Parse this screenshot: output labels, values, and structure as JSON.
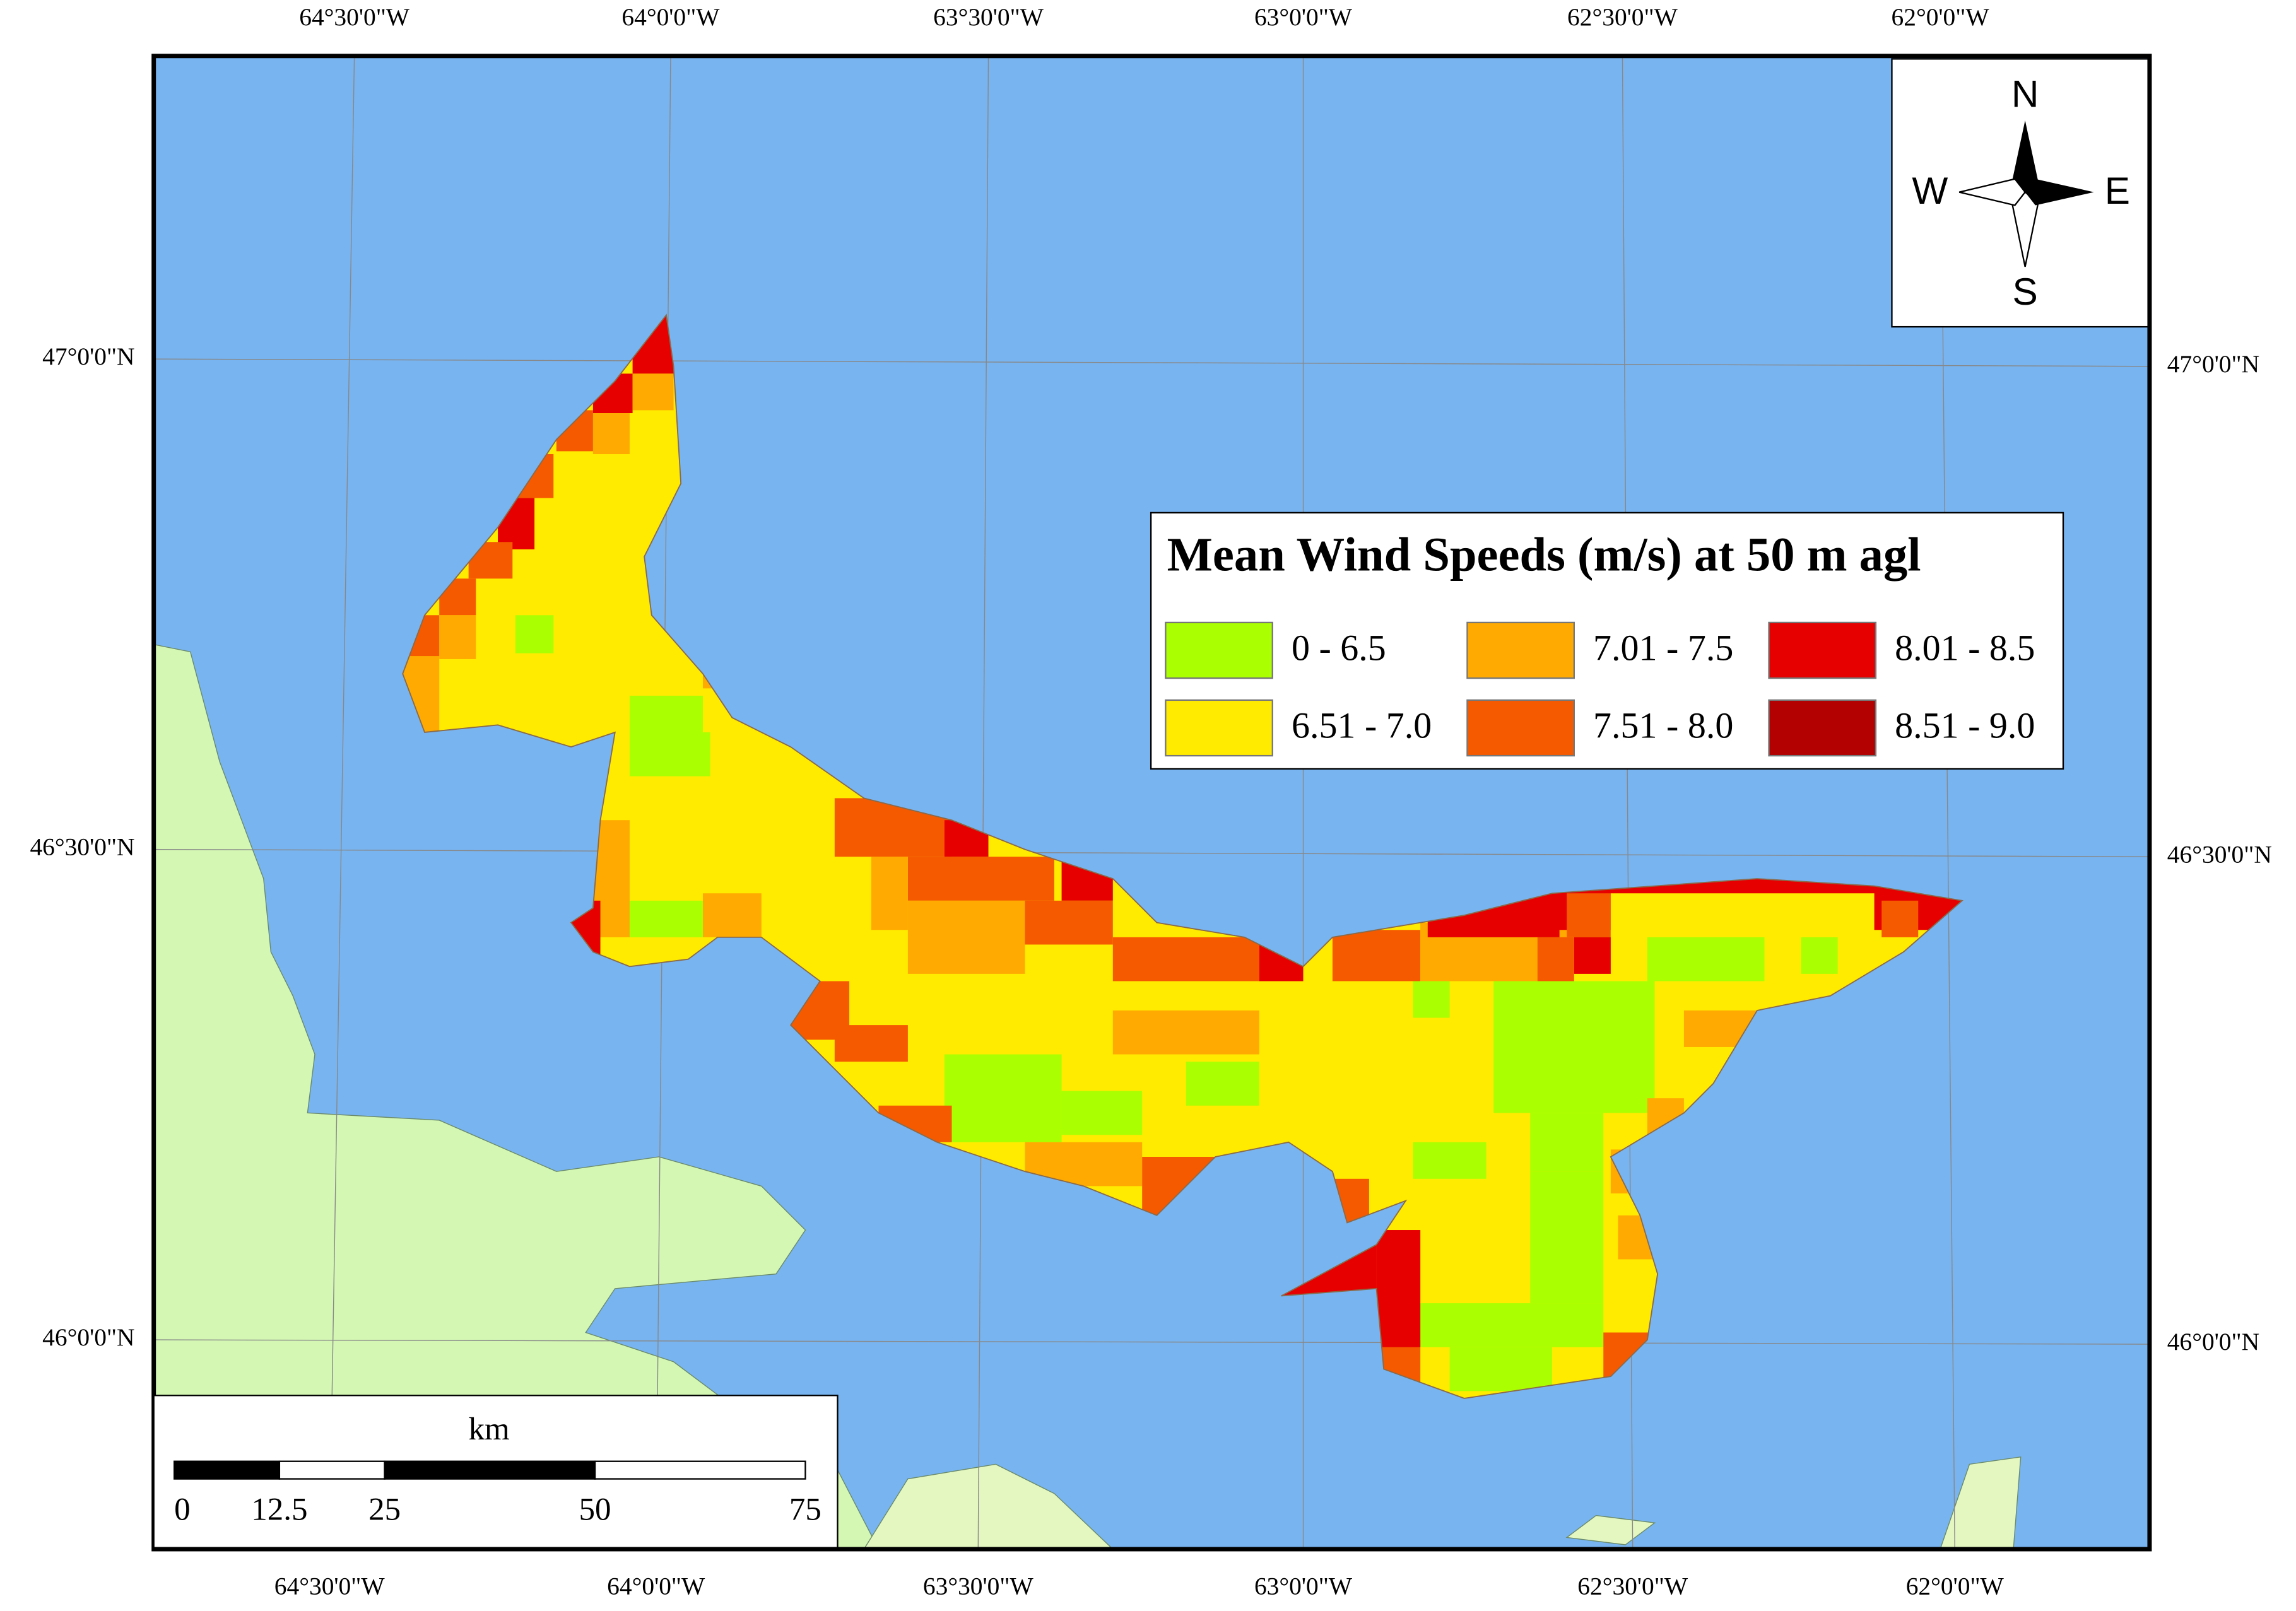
{
  "legend": {
    "title": "Mean Wind Speeds (m/s) at 50 m agl",
    "items": [
      {
        "label": "0 - 6.5",
        "color": "#aaff00"
      },
      {
        "label": "6.51 - 7.0",
        "color": "#ffeb00"
      },
      {
        "label": "7.01 - 7.5",
        "color": "#ffaa00"
      },
      {
        "label": "7.51 - 8.0",
        "color": "#f55a00"
      },
      {
        "label": "8.01 - 8.5",
        "color": "#e60000"
      },
      {
        "label": "8.51 - 9.0",
        "color": "#b30000"
      }
    ]
  },
  "graticule": {
    "top": [
      "64°30'0\"W",
      "64°0'0\"W",
      "63°30'0\"W",
      "63°0'0\"W",
      "62°30'0\"W",
      "62°0'0\"W"
    ],
    "bottom": [
      "64°30'0\"W",
      "64°0'0\"W",
      "63°30'0\"W",
      "63°0'0\"W",
      "62°30'0\"W",
      "62°0'0\"W"
    ],
    "left": [
      "47°0'0\"N",
      "46°30'0\"N",
      "46°0'0\"N"
    ],
    "right": [
      "47°0'0\"N",
      "46°30'0\"N",
      "46°0'0\"N"
    ]
  },
  "compass": {
    "n": "N",
    "s": "S",
    "w": "W",
    "e": "E"
  },
  "scale_bar": {
    "unit": "km",
    "ticks": [
      0,
      12.5,
      25,
      50,
      75
    ]
  }
}
